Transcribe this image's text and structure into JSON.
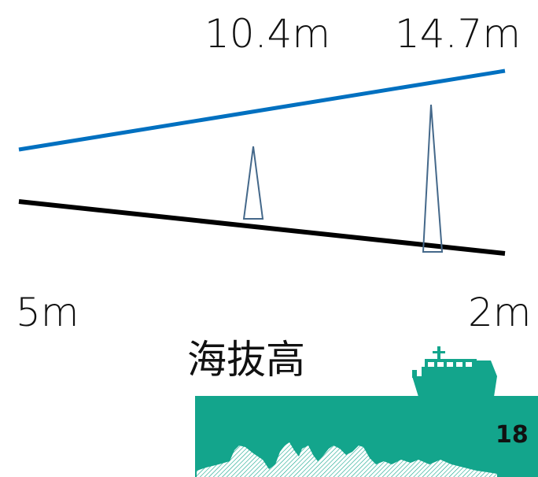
{
  "diagram": {
    "labels": {
      "height_left": "10.4m",
      "height_right": "14.7m",
      "base_left": "5m",
      "base_right": "2m",
      "elevation": "海抜高"
    },
    "page_number": "18",
    "colors": {
      "sea_level_line": "#0070c0",
      "ground_line": "#000000",
      "marker_outline": "#44688a",
      "sea": "#13a58c",
      "ship": "#13a58c",
      "seabed": "#ffffff"
    }
  }
}
